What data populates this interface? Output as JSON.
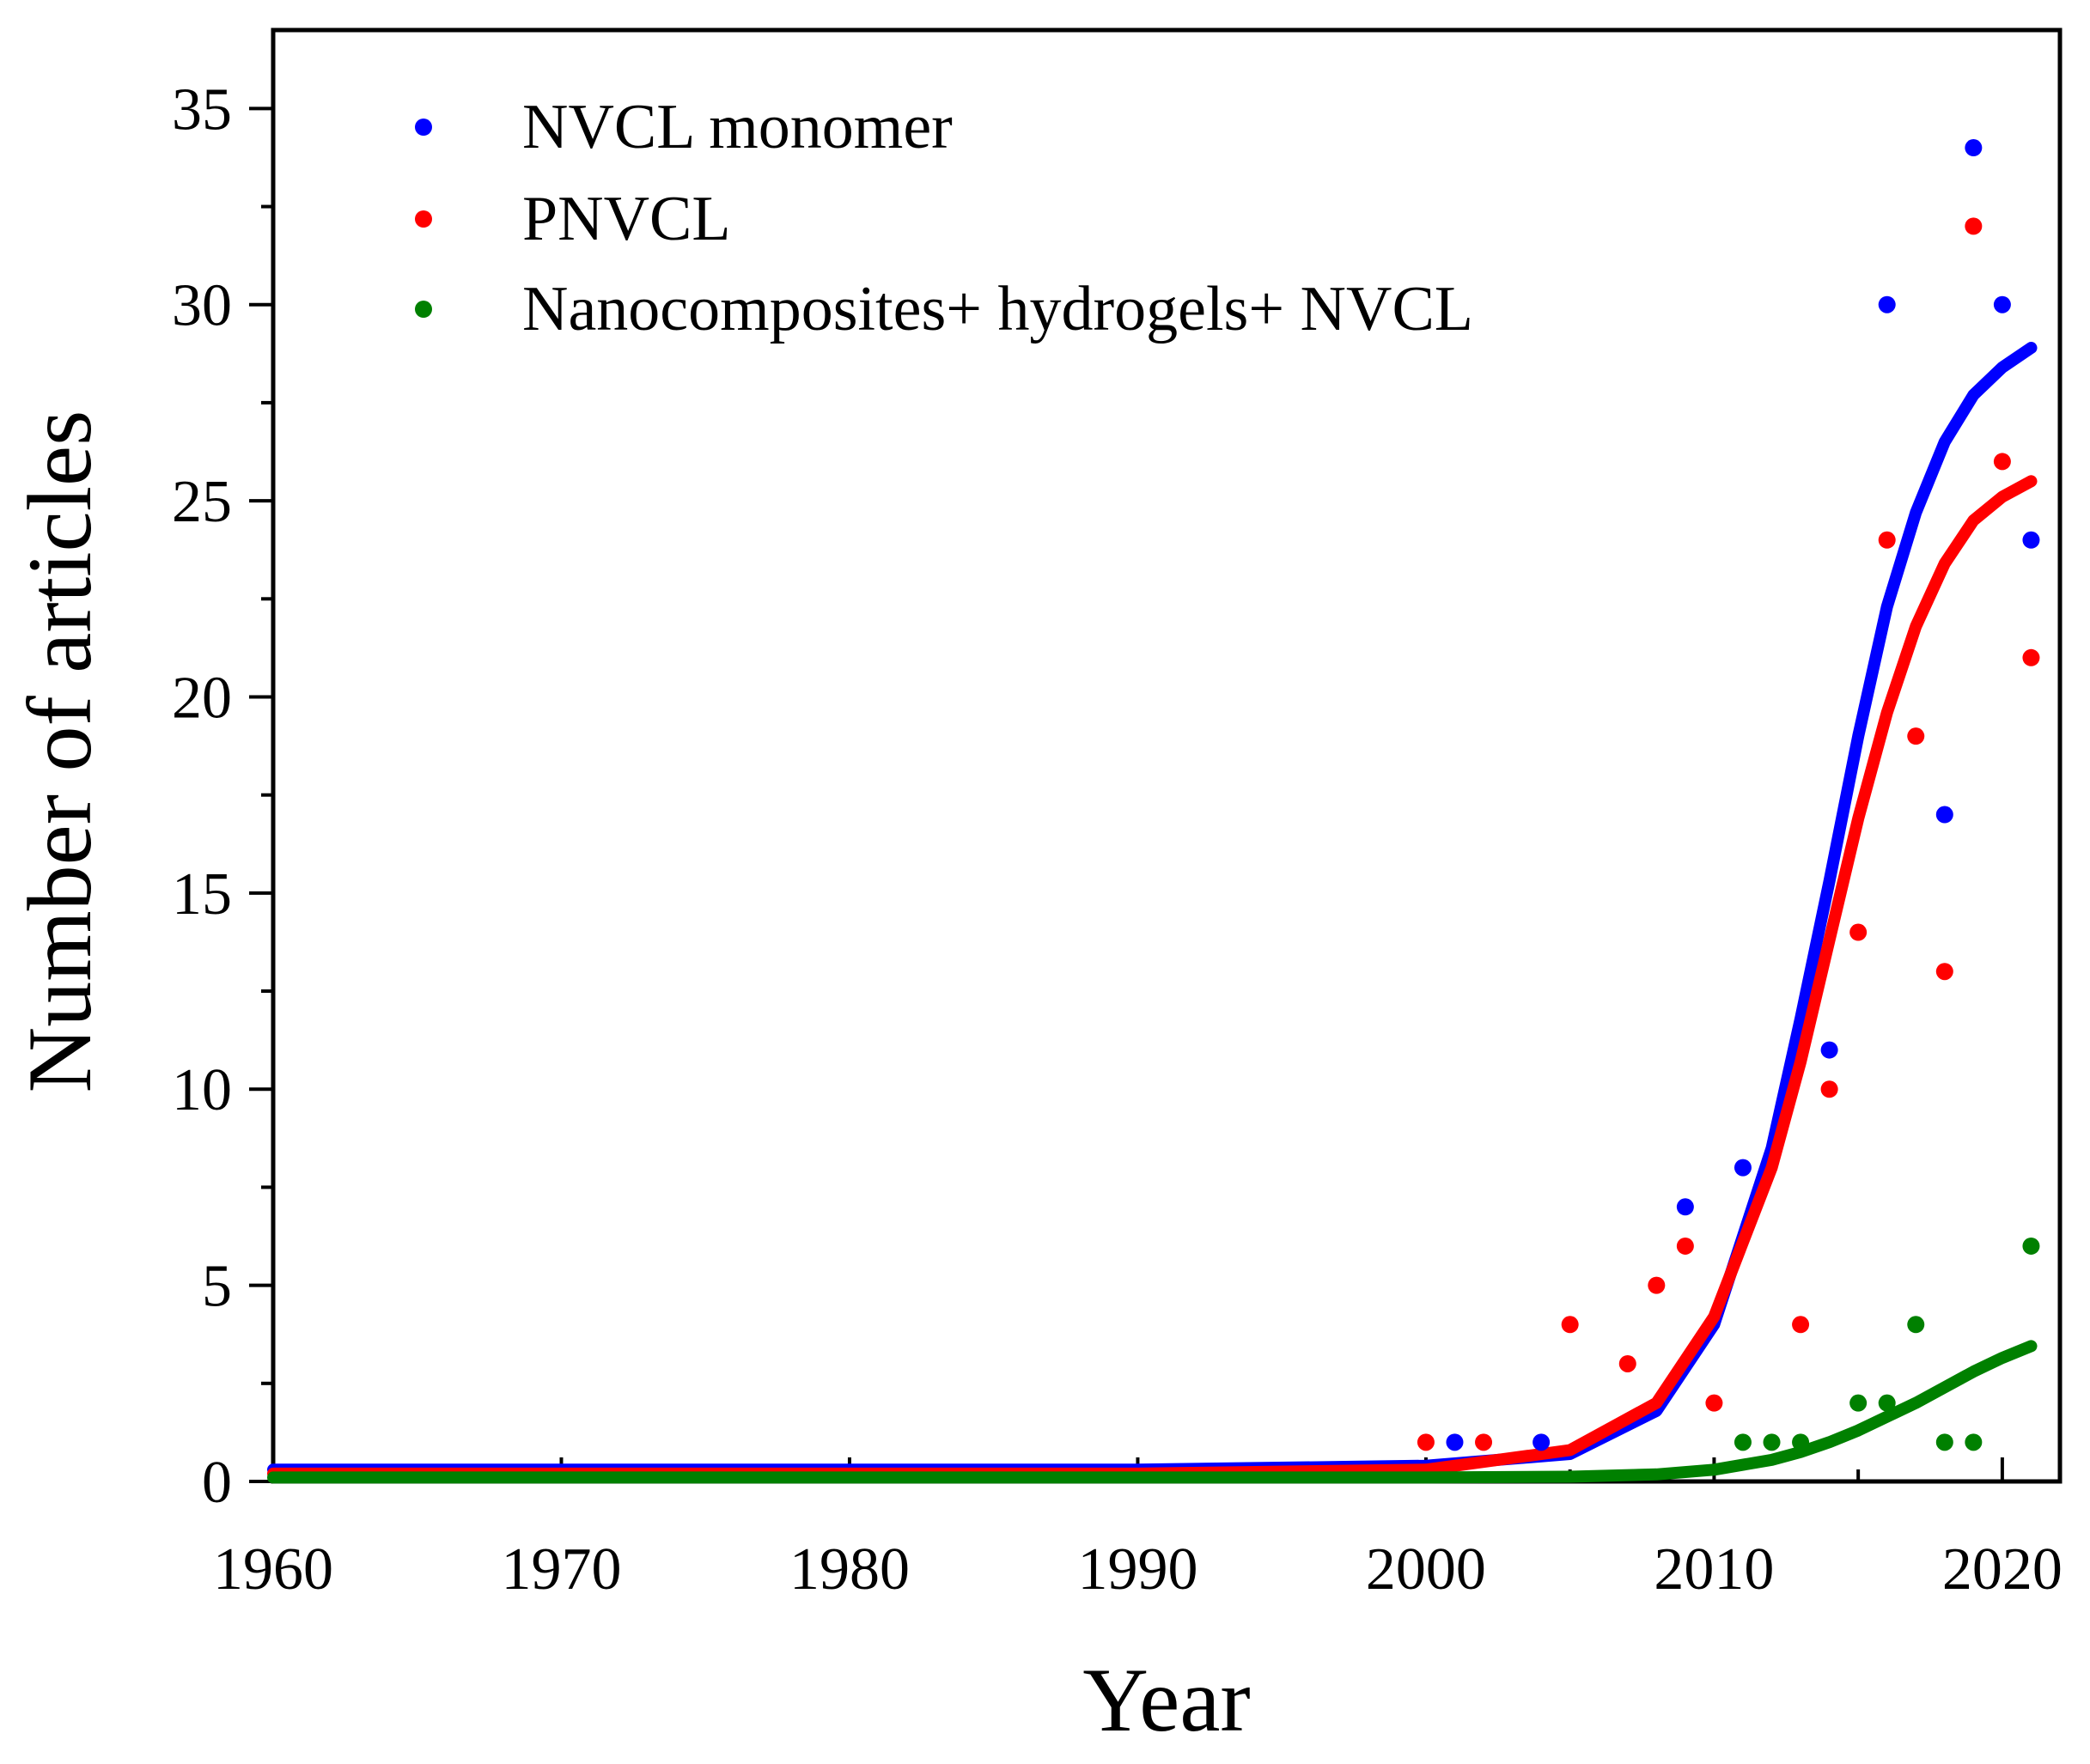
{
  "chart_data": {
    "type": "scatter",
    "title": "",
    "xlabel": "Year",
    "ylabel": "Number  of articles",
    "xlim": [
      1960,
      2022
    ],
    "ylim": [
      0,
      37
    ],
    "xticks": [
      1960,
      1970,
      1980,
      1990,
      2000,
      2010,
      2020
    ],
    "xtick_labels": [
      "1960",
      "1970",
      "1980",
      "1990",
      "2000",
      "2010",
      "2020"
    ],
    "xminor_step": 5,
    "yticks": [
      0,
      5,
      10,
      15,
      20,
      25,
      30,
      35
    ],
    "ytick_labels": [
      "0",
      "5",
      "10",
      "15",
      "20",
      "25",
      "30",
      "35"
    ],
    "yminor_step": 2.5,
    "grid": false,
    "legend_position": "top-left",
    "series": [
      {
        "name": "NVCL monomer",
        "color": "#0000ff",
        "points": [
          {
            "x": 2001,
            "y": 1
          },
          {
            "x": 2004,
            "y": 1
          },
          {
            "x": 2009,
            "y": 7
          },
          {
            "x": 2011,
            "y": 8
          },
          {
            "x": 2014,
            "y": 11
          },
          {
            "x": 2016,
            "y": 30
          },
          {
            "x": 2018,
            "y": 17
          },
          {
            "x": 2019,
            "y": 34
          },
          {
            "x": 2020,
            "y": 30
          },
          {
            "x": 2021,
            "y": 24
          }
        ],
        "fit": {
          "x": [
            1960,
            1970,
            1980,
            1990,
            2000,
            2005,
            2008,
            2010,
            2012,
            2013,
            2014,
            2015,
            2016,
            2017,
            2018,
            2019,
            2020,
            2021
          ],
          "y": [
            0.3,
            0.3,
            0.3,
            0.3,
            0.4,
            0.7,
            1.8,
            4.0,
            8.5,
            11.8,
            15.3,
            19.0,
            22.3,
            24.7,
            26.5,
            27.7,
            28.4,
            28.9
          ]
        }
      },
      {
        "name": "PNVCL",
        "color": "#ff0000",
        "points": [
          {
            "x": 2000,
            "y": 1
          },
          {
            "x": 2002,
            "y": 1
          },
          {
            "x": 2005,
            "y": 4
          },
          {
            "x": 2007,
            "y": 3
          },
          {
            "x": 2008,
            "y": 5
          },
          {
            "x": 2009,
            "y": 6
          },
          {
            "x": 2010,
            "y": 2
          },
          {
            "x": 2013,
            "y": 4
          },
          {
            "x": 2014,
            "y": 10
          },
          {
            "x": 2015,
            "y": 14
          },
          {
            "x": 2016,
            "y": 24
          },
          {
            "x": 2017,
            "y": 19
          },
          {
            "x": 2018,
            "y": 13
          },
          {
            "x": 2019,
            "y": 32
          },
          {
            "x": 2020,
            "y": 26
          },
          {
            "x": 2021,
            "y": 21
          }
        ],
        "fit": {
          "x": [
            1960,
            1970,
            1980,
            1990,
            2000,
            2005,
            2008,
            2010,
            2012,
            2013,
            2014,
            2015,
            2016,
            2017,
            2018,
            2019,
            2020,
            2021
          ],
          "y": [
            0.2,
            0.2,
            0.2,
            0.2,
            0.3,
            0.8,
            2.0,
            4.2,
            8.0,
            10.7,
            13.8,
            16.9,
            19.6,
            21.8,
            23.4,
            24.5,
            25.1,
            25.5
          ]
        }
      },
      {
        "name": "Nanocomposites+ hydrogels+ NVCL",
        "color": "#008000",
        "points": [
          {
            "x": 2011,
            "y": 1
          },
          {
            "x": 2012,
            "y": 1
          },
          {
            "x": 2013,
            "y": 1
          },
          {
            "x": 2015,
            "y": 2
          },
          {
            "x": 2016,
            "y": 2
          },
          {
            "x": 2017,
            "y": 4
          },
          {
            "x": 2018,
            "y": 1
          },
          {
            "x": 2019,
            "y": 1
          },
          {
            "x": 2021,
            "y": 6
          }
        ],
        "fit": {
          "x": [
            1960,
            1970,
            1980,
            1990,
            2000,
            2005,
            2008,
            2010,
            2012,
            2013,
            2014,
            2015,
            2016,
            2017,
            2018,
            2019,
            2020,
            2021
          ],
          "y": [
            0.1,
            0.1,
            0.1,
            0.1,
            0.1,
            0.12,
            0.18,
            0.3,
            0.55,
            0.75,
            1.0,
            1.3,
            1.65,
            2.0,
            2.4,
            2.8,
            3.15,
            3.45
          ]
        }
      }
    ]
  }
}
